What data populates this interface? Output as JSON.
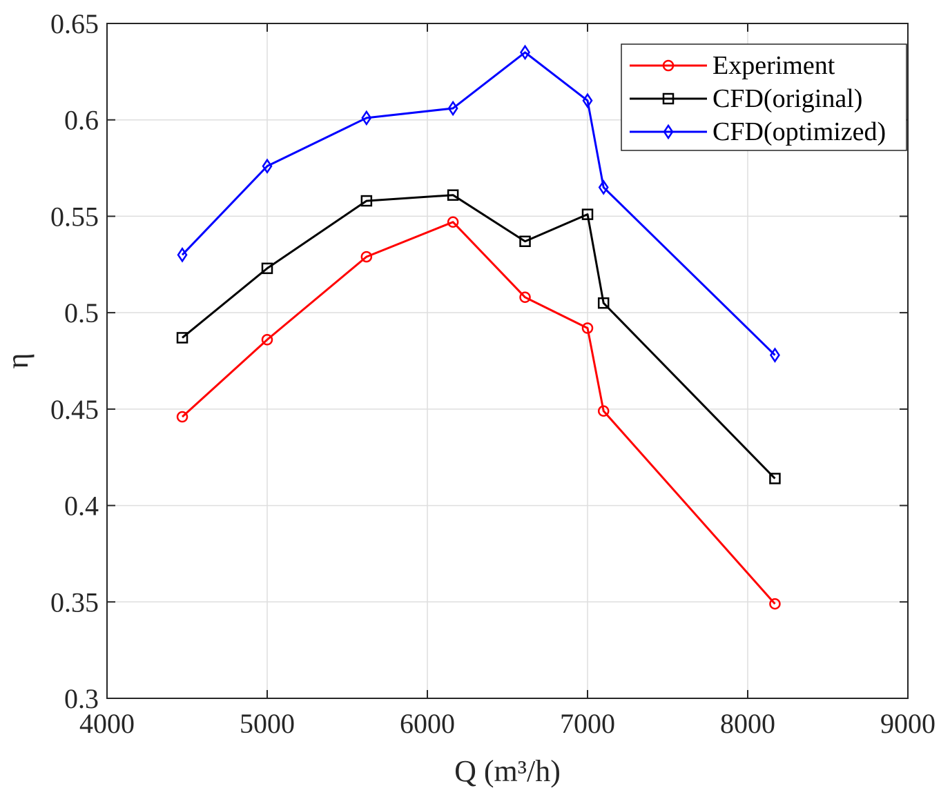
{
  "chart_data": {
    "type": "line",
    "xlabel": "Q (m³/h)",
    "ylabel": "η",
    "xlim": [
      4000,
      9000
    ],
    "ylim": [
      0.3,
      0.65
    ],
    "xticks": [
      4000,
      5000,
      6000,
      7000,
      8000,
      9000
    ],
    "xtick_labels": [
      "4000",
      "5000",
      "6000",
      "7000",
      "8000",
      "9000"
    ],
    "yticks": [
      0.3,
      0.35,
      0.4,
      0.45,
      0.5,
      0.55,
      0.6,
      0.65
    ],
    "ytick_labels": [
      "0.3",
      "0.35",
      "0.4",
      "0.45",
      "0.5",
      "0.55",
      "0.6",
      "0.65"
    ],
    "grid": true,
    "legend_position": "top-right",
    "series": [
      {
        "name": "Experiment",
        "color": "#ff0000",
        "marker": "circle",
        "x": [
          4470,
          5000,
          5620,
          6160,
          6610,
          7000,
          7100,
          8170
        ],
        "y": [
          0.446,
          0.486,
          0.529,
          0.547,
          0.508,
          0.492,
          0.449,
          0.349
        ]
      },
      {
        "name": "CFD(original)",
        "color": "#000000",
        "marker": "square",
        "x": [
          4470,
          5000,
          5620,
          6160,
          6610,
          7000,
          7100,
          8170
        ],
        "y": [
          0.487,
          0.523,
          0.558,
          0.561,
          0.537,
          0.551,
          0.505,
          0.414
        ]
      },
      {
        "name": "CFD(optimized)",
        "color": "#0000ff",
        "marker": "diamond",
        "x": [
          4470,
          5000,
          5620,
          6160,
          6610,
          7000,
          7100,
          8170
        ],
        "y": [
          0.53,
          0.576,
          0.601,
          0.606,
          0.635,
          0.61,
          0.565,
          0.478
        ]
      }
    ]
  }
}
